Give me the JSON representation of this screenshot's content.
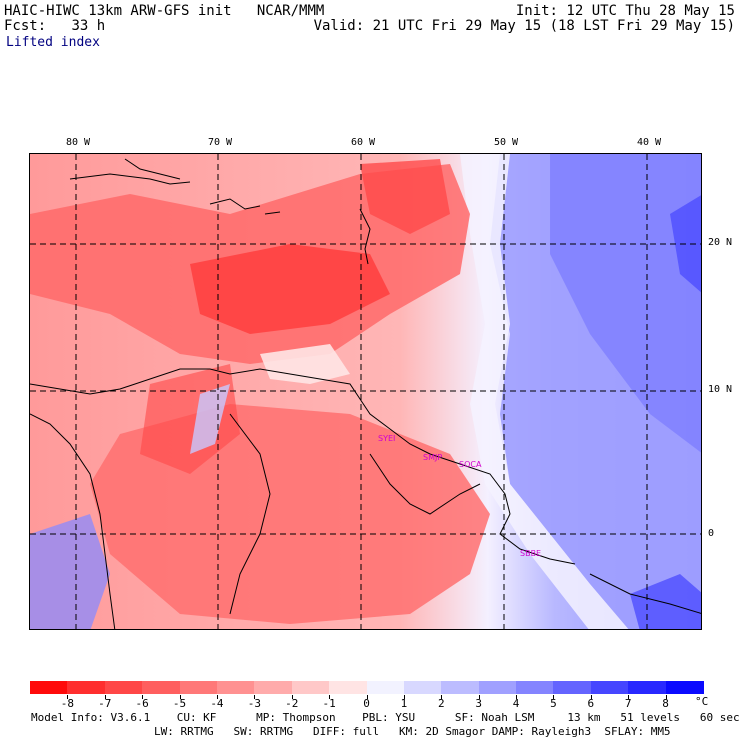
{
  "header": {
    "model_title": "HAIC-HIWC 13km ARW-GFS init",
    "org": "NCAR/MMM",
    "fcst_label": "Fcst:",
    "fcst_value": "33 h",
    "field": "Lifted index",
    "init": "Init: 12 UTC Thu 28 May 15",
    "valid": "Valid: 21 UTC Fri 29 May 15 (18 LST Fri 29 May 15)"
  },
  "lon_labels": [
    "80 W",
    "70 W",
    "60 W",
    "50 W",
    "40 W"
  ],
  "lat_labels": [
    "20 N",
    "10 N",
    "0"
  ],
  "stations": [
    "SYEI",
    "SMJP",
    "SOCA",
    "SBBE"
  ],
  "colorbar": {
    "unit": "°C",
    "ticks": [
      "-8",
      "-7",
      "-6",
      "-5",
      "-4",
      "-3",
      "-2",
      "-1",
      "0",
      "1",
      "2",
      "3",
      "4",
      "5",
      "6",
      "7",
      "8"
    ],
    "colors": [
      "#ff0a0a",
      "#ff2e2e",
      "#ff4747",
      "#ff5f5f",
      "#ff7878",
      "#ff9191",
      "#ffabab",
      "#ffc8c8",
      "#ffe4e4",
      "#f2f2ff",
      "#d8d8ff",
      "#bcbcff",
      "#a0a0ff",
      "#8484ff",
      "#6464ff",
      "#4646ff",
      "#2828ff",
      "#0a0aff"
    ]
  },
  "footer": {
    "line1": "Model Info: V3.6.1    CU: KF      MP: Thompson    PBL: YSU      SF: Noah LSM     13 km   51 levels   60 sec",
    "line2": "LW: RRTMG   SW: RRTMG   DIFF: full   KM: 2D Smagor DAMP: Rayleigh3  SFLAY: MM5"
  }
}
